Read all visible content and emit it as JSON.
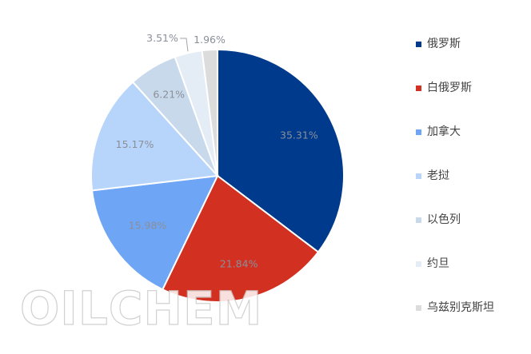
{
  "watermark_text": "OILCHEM",
  "chart_data": {
    "type": "pie",
    "title": "",
    "categories": [
      "俄罗斯",
      "白俄罗斯",
      "加拿大",
      "老挝",
      "以色列",
      "约旦",
      "乌兹别克斯坦"
    ],
    "values": [
      35.31,
      21.84,
      15.98,
      15.17,
      6.21,
      3.51,
      1.96
    ],
    "labels": [
      "35.31%",
      "21.84%",
      "15.98%",
      "15.17%",
      "6.21%",
      "3.51%",
      "1.96%"
    ],
    "colors": [
      "#003a8c",
      "#d23021",
      "#6ea6f5",
      "#b7d4fb",
      "#c9d9ec",
      "#e4ecf6",
      "#dcdcdc"
    ],
    "legend_position": "right",
    "start_angle_deg": 0,
    "direction": "clockwise"
  }
}
